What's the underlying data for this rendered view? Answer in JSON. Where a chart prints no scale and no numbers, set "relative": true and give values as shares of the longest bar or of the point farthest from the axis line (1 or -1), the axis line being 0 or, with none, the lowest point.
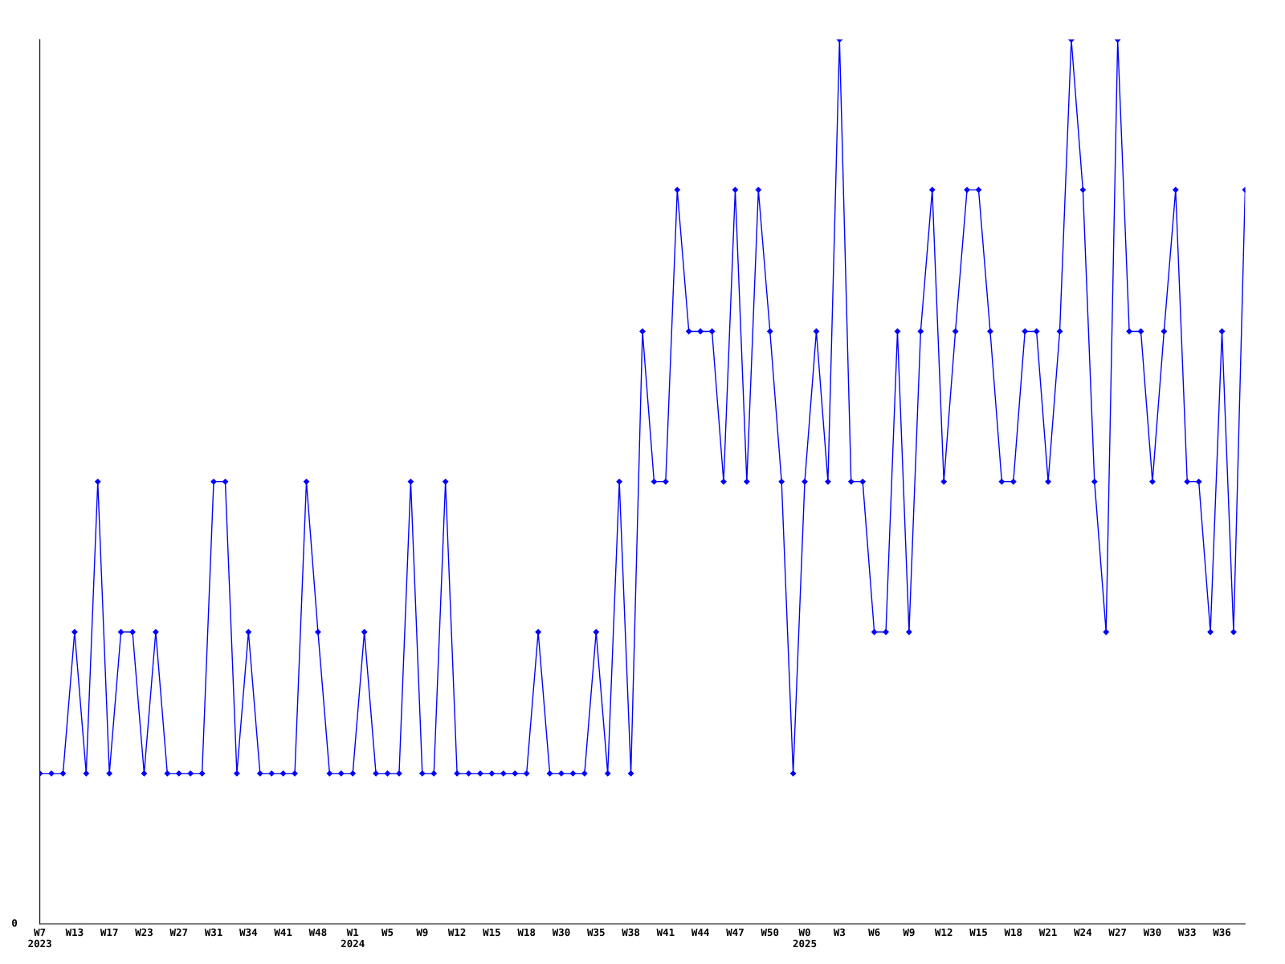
{
  "chart_data": {
    "type": "line",
    "relative": true,
    "marker": "diamond",
    "line_style": "solid",
    "grid": false,
    "legend": false,
    "categories": [
      "W7\n2023",
      null,
      null,
      "W13",
      null,
      null,
      "W17",
      null,
      null,
      "W23",
      null,
      null,
      "W27",
      null,
      null,
      "W31",
      null,
      null,
      "W34",
      null,
      null,
      "W41",
      null,
      null,
      "W48",
      null,
      null,
      "W1\n2024",
      null,
      null,
      "W5",
      null,
      null,
      "W9",
      null,
      null,
      "W12",
      null,
      null,
      "W15",
      null,
      null,
      "W18",
      null,
      null,
      "W30",
      null,
      null,
      "W35",
      null,
      null,
      "W38",
      null,
      null,
      "W41",
      null,
      null,
      "W44",
      null,
      null,
      "W47",
      null,
      null,
      "W50",
      null,
      null,
      "W0\n2025",
      null,
      null,
      "W3",
      null,
      null,
      "W6",
      null,
      null,
      "W9",
      null,
      null,
      "W12",
      null,
      null,
      "W15",
      null,
      null,
      "W18",
      null,
      null,
      "W21",
      null,
      null,
      "W24",
      null,
      null,
      "W27",
      null,
      null,
      "W30",
      null,
      null,
      "W33",
      null,
      null,
      "W36",
      null,
      null
    ],
    "series": [
      {
        "color": "#0000ff",
        "values": [
          0.17,
          0.17,
          0.17,
          0.33,
          0.17,
          0.5,
          0.17,
          0.33,
          0.33,
          0.17,
          0.33,
          0.17,
          0.17,
          0.17,
          0.17,
          0.5,
          0.5,
          0.17,
          0.33,
          0.17,
          0.17,
          0.17,
          0.17,
          0.5,
          0.33,
          0.17,
          0.17,
          0.17,
          0.33,
          0.17,
          0.17,
          0.17,
          0.5,
          0.17,
          0.17,
          0.5,
          0.17,
          0.17,
          0.17,
          0.17,
          0.17,
          0.17,
          0.17,
          0.33,
          0.17,
          0.17,
          0.17,
          0.17,
          0.33,
          0.17,
          0.5,
          0.17,
          0.67,
          0.5,
          0.5,
          0.83,
          0.67,
          0.67,
          0.67,
          0.5,
          0.83,
          0.5,
          0.83,
          0.67,
          0.5,
          0.17,
          0.5,
          0.67,
          0.5,
          1,
          0.5,
          0.5,
          0.33,
          0.33,
          0.67,
          0.33,
          0.67,
          0.83,
          0.5,
          0.67,
          0.83,
          0.83,
          0.67,
          0.5,
          0.5,
          0.67,
          0.67,
          0.5,
          0.67,
          1,
          0.83,
          0.5,
          0.33,
          1,
          0.67,
          0.67,
          0.5,
          0.67,
          0.83,
          0.5,
          0.5,
          0.33,
          0.67,
          0.33,
          0.83
        ]
      }
    ],
    "annotations": [
      "0"
    ]
  }
}
